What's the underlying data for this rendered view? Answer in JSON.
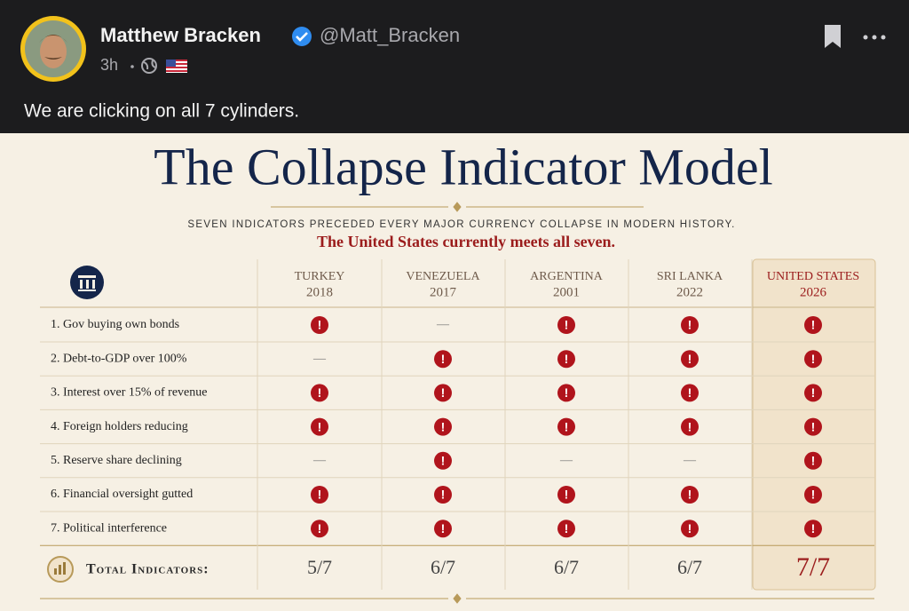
{
  "post": {
    "author": "Matthew Bracken",
    "handle": "@Matt_Bracken",
    "time": "3h",
    "text": "We are clicking on all 7 cylinders."
  },
  "image": {
    "title": "The Collapse Indicator Model",
    "subtitle": "SEVEN INDICATORS PRECEDED EVERY MAJOR CURRENCY COLLAPSE IN MODERN HISTORY.",
    "highlight": "The United States currently meets all seven.",
    "table": {
      "columns": [
        {
          "country": "TURKEY",
          "year": "2018"
        },
        {
          "country": "VENEZUELA",
          "year": "2017"
        },
        {
          "country": "ARGENTINA",
          "year": "2001"
        },
        {
          "country": "SRI LANKA",
          "year": "2022"
        },
        {
          "country": "UNITED STATES",
          "year": "2026"
        }
      ],
      "met_symbol": "!",
      "unmet_symbol": "—",
      "rows": [
        {
          "label": "1. Gov buying own bonds",
          "cells": [
            true,
            false,
            true,
            true,
            true
          ]
        },
        {
          "label": "2. Debt-to-GDP over 100%",
          "cells": [
            false,
            true,
            true,
            true,
            true
          ]
        },
        {
          "label": "3. Interest over 15% of revenue",
          "cells": [
            true,
            true,
            true,
            true,
            true
          ]
        },
        {
          "label": "4. Foreign holders reducing",
          "cells": [
            true,
            true,
            true,
            true,
            true
          ]
        },
        {
          "label": "5. Reserve share declining",
          "cells": [
            false,
            true,
            false,
            false,
            true
          ]
        },
        {
          "label": "6. Financial oversight gutted",
          "cells": [
            true,
            true,
            true,
            true,
            true
          ]
        },
        {
          "label": "7. Political interference",
          "cells": [
            true,
            true,
            true,
            true,
            true
          ]
        }
      ],
      "total_label": "Total Indicators:",
      "totals": [
        "5/7",
        "6/7",
        "6/7",
        "6/7",
        "7/7"
      ]
    }
  }
}
